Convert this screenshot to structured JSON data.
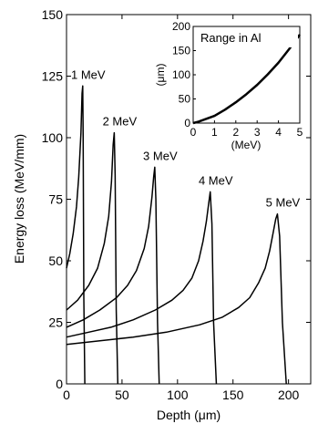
{
  "chart_data": [
    {
      "type": "line",
      "xlabel": "Depth (μm)",
      "ylabel": "Energy loss (MeV/mm)",
      "xlim": [
        0,
        220
      ],
      "ylim": [
        0,
        150
      ],
      "xticks": [
        "0",
        "50",
        "100",
        "150",
        "200"
      ],
      "yticks": [
        "0",
        "25",
        "50",
        "75",
        "100",
        "125",
        "150"
      ],
      "grid": false,
      "series": [
        {
          "name": "1 MeV",
          "x": [
            0,
            3,
            6,
            9,
            11,
            13,
            14,
            14.6,
            15,
            15.6,
            16.5
          ],
          "y": [
            47,
            53,
            61,
            72,
            84,
            102,
            118,
            121,
            100,
            35,
            0
          ]
        },
        {
          "name": "2 MeV",
          "x": [
            0,
            10,
            20,
            28,
            34,
            38,
            40.5,
            42,
            43,
            43.8,
            44.8,
            46.2
          ],
          "y": [
            30,
            34,
            40,
            47,
            57,
            68,
            82,
            97,
            102,
            85,
            30,
            0
          ]
        },
        {
          "name": "3 MeV",
          "x": [
            0,
            15,
            30,
            45,
            55,
            63,
            70,
            74,
            77,
            78.5,
            79.5,
            80.5,
            82,
            83.5
          ],
          "y": [
            23,
            26,
            30,
            35,
            40,
            46,
            55,
            64,
            76,
            84,
            88,
            75,
            25,
            0
          ]
        },
        {
          "name": "4 MeV",
          "x": [
            0,
            20,
            40,
            60,
            80,
            95,
            105,
            113,
            119,
            123,
            126,
            128,
            129.5,
            131,
            132.5,
            135
          ],
          "y": [
            19,
            21,
            23,
            26,
            30,
            34,
            38,
            43,
            50,
            58,
            66,
            73,
            78,
            65,
            25,
            0
          ]
        },
        {
          "name": "5 MeV",
          "x": [
            0,
            30,
            60,
            90,
            120,
            140,
            155,
            165,
            173,
            179,
            183,
            186,
            188.5,
            190,
            192,
            194.5,
            198
          ],
          "y": [
            16,
            17.5,
            19,
            21,
            24,
            27,
            31,
            35,
            41,
            47,
            54,
            61,
            67,
            69,
            60,
            25,
            0
          ]
        }
      ]
    },
    {
      "type": "line",
      "title": "Range in Al",
      "xlabel": "(MeV)",
      "ylabel": "(μm)",
      "xlim": [
        0,
        5
      ],
      "ylim": [
        0,
        200
      ],
      "xticks": [
        "0",
        "1",
        "2",
        "3",
        "4",
        "5"
      ],
      "yticks": [
        "0",
        "50",
        "100",
        "150",
        "200"
      ],
      "grid": false,
      "series": [
        {
          "x": [
            0,
            0.25,
            0.5,
            0.75,
            1,
            1.5,
            2,
            2.5,
            3,
            3.5,
            4,
            4.5,
            5
          ],
          "y": [
            0,
            3,
            7,
            11,
            15,
            28,
            43,
            60,
            79,
            101,
            125,
            153,
            183
          ]
        }
      ]
    }
  ]
}
